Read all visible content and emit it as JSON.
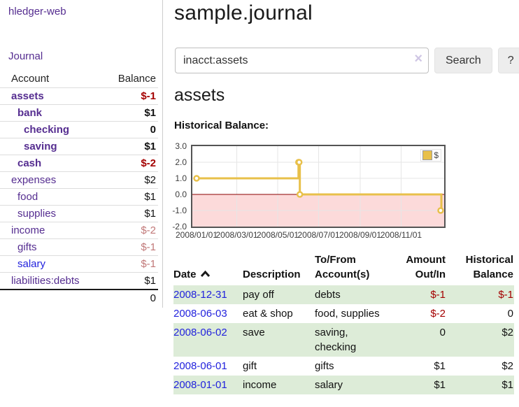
{
  "app": {
    "brand": "hledger-web",
    "nav_journal": "Journal"
  },
  "colors": {
    "link_purple": "#552d90",
    "link_blue": "#2222dd",
    "negative_strong": "#a40000",
    "negative_faded": "#c17878",
    "row_stripe_green": "#ddecd8",
    "chart_line_gold": "#e8c04a",
    "chart_negative_fill": "#fcdada",
    "chart_zero_line": "#8b0000"
  },
  "sidebar": {
    "headers": {
      "account": "Account",
      "balance": "Balance"
    },
    "accounts": [
      {
        "name": "assets",
        "depth": 1,
        "bold": true,
        "name_color": "#552d90",
        "balance": "$-1",
        "balance_color": "#a40000"
      },
      {
        "name": "bank",
        "depth": 2,
        "bold": true,
        "name_color": "#552d90",
        "balance": "$1",
        "balance_color": "#111111"
      },
      {
        "name": "checking",
        "depth": 3,
        "bold": true,
        "name_color": "#552d90",
        "balance": "0",
        "balance_color": "#111111"
      },
      {
        "name": "saving",
        "depth": 3,
        "bold": true,
        "name_color": "#552d90",
        "balance": "$1",
        "balance_color": "#111111"
      },
      {
        "name": "cash",
        "depth": 2,
        "bold": true,
        "name_color": "#552d90",
        "balance": "$-2",
        "balance_color": "#a40000"
      },
      {
        "name": "expenses",
        "depth": 1,
        "bold": false,
        "name_color": "#552d90",
        "balance": "$2",
        "balance_color": "#111111"
      },
      {
        "name": "food",
        "depth": 2,
        "bold": false,
        "name_color": "#552d90",
        "balance": "$1",
        "balance_color": "#111111"
      },
      {
        "name": "supplies",
        "depth": 2,
        "bold": false,
        "name_color": "#552d90",
        "balance": "$1",
        "balance_color": "#111111"
      },
      {
        "name": "income",
        "depth": 1,
        "bold": false,
        "name_color": "#552d90",
        "balance": "$-2",
        "balance_color": "#c17878"
      },
      {
        "name": "gifts",
        "depth": 2,
        "bold": false,
        "name_color": "#552d90",
        "balance": "$-1",
        "balance_color": "#c17878"
      },
      {
        "name": "salary",
        "depth": 2,
        "bold": false,
        "name_color": "#2222dd",
        "balance": "$-1",
        "balance_color": "#c17878"
      },
      {
        "name": "liabilities:debts",
        "depth": 1,
        "bold": false,
        "name_color": "#552d90",
        "balance": "$1",
        "balance_color": "#111111"
      }
    ],
    "total": "0"
  },
  "header": {
    "title": "sample.journal"
  },
  "search": {
    "query": "inacct:assets",
    "clear_icon": "×",
    "button_label": "Search",
    "help_label": "?"
  },
  "account_page": {
    "heading": "assets",
    "chart_label": "Historical Balance:"
  },
  "chart_data": {
    "type": "line",
    "title": "Historical Balance",
    "step": true,
    "ylim": [
      -2,
      3
    ],
    "yticks": [
      3.0,
      2.0,
      1.0,
      0.0,
      -1.0,
      -2.0
    ],
    "ytick_labels": [
      "3.0",
      "2.0",
      "1.0",
      "0.0",
      "-1.0",
      "-2.0"
    ],
    "xticks": [
      "2008/01/01",
      "2008/03/01",
      "2008/05/01",
      "2008/07/01",
      "2008/09/01",
      "2008/11/01"
    ],
    "x_range": [
      "2008-01-01",
      "2008-12-31"
    ],
    "grid": true,
    "legend_position": "top-right",
    "series": [
      {
        "name": "$",
        "points": [
          [
            "2008-01-01",
            1
          ],
          [
            "2008-06-01",
            2
          ],
          [
            "2008-06-02",
            2
          ],
          [
            "2008-06-03",
            0
          ],
          [
            "2008-12-31",
            -1
          ]
        ]
      }
    ]
  },
  "journal_table": {
    "headers": {
      "date": "Date",
      "description": "Description",
      "accounts": "To/From Account(s)",
      "amount": "Amount Out/In",
      "balance": "Historical Balance"
    },
    "sort_icon": "chevron-up",
    "rows": [
      {
        "date": "2008-12-31",
        "description": "pay off",
        "accounts": "debts",
        "amount": "$-1",
        "amount_neg": true,
        "balance": "$-1",
        "balance_neg": true
      },
      {
        "date": "2008-06-03",
        "description": "eat & shop",
        "accounts": "food, supplies",
        "amount": "$-2",
        "amount_neg": true,
        "balance": "0",
        "balance_neg": false
      },
      {
        "date": "2008-06-02",
        "description": "save",
        "accounts": "saving, checking",
        "amount": "0",
        "amount_neg": false,
        "balance": "$2",
        "balance_neg": false
      },
      {
        "date": "2008-06-01",
        "description": "gift",
        "accounts": "gifts",
        "amount": "$1",
        "amount_neg": false,
        "balance": "$2",
        "balance_neg": false
      },
      {
        "date": "2008-01-01",
        "description": "income",
        "accounts": "salary",
        "amount": "$1",
        "amount_neg": false,
        "balance": "$1",
        "balance_neg": false
      }
    ]
  }
}
